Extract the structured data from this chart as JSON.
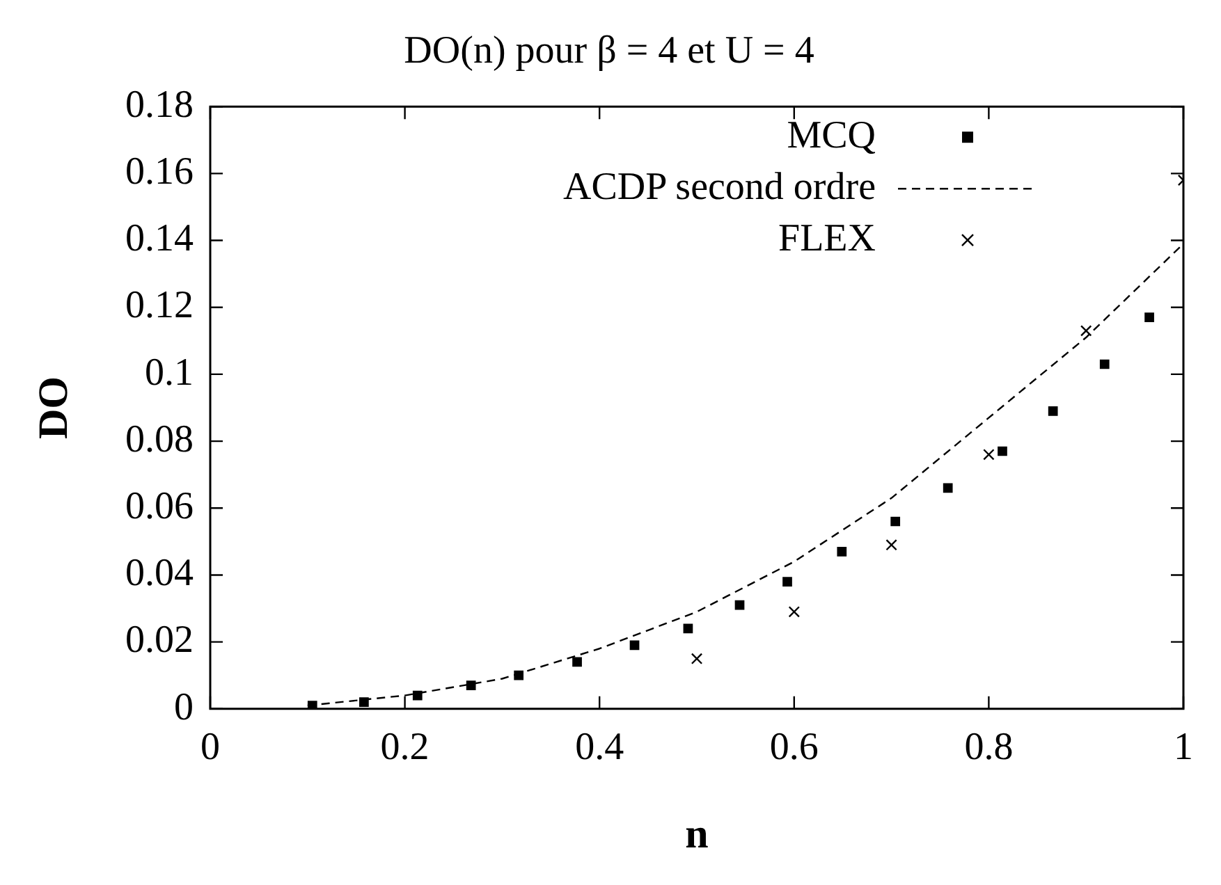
{
  "chart_data": {
    "type": "scatter",
    "title": "DO(n) pour β = 4 et U = 4",
    "xlabel": "n",
    "ylabel": "DO",
    "xlim": [
      0,
      1
    ],
    "xticks": [
      0,
      0.2,
      0.4,
      0.6,
      0.8,
      1
    ],
    "ylim": [
      0,
      0.18
    ],
    "yticks": [
      0,
      0.02,
      0.04,
      0.06,
      0.08,
      0.1,
      0.12,
      0.14,
      0.16,
      0.18
    ],
    "grid": false,
    "legend": "top right",
    "series": [
      {
        "name": "MCQ",
        "type": "scatter",
        "marker": "square",
        "color": "#000000",
        "x": [
          0.105,
          0.158,
          0.213,
          0.268,
          0.317,
          0.377,
          0.436,
          0.491,
          0.544,
          0.593,
          0.649,
          0.704,
          0.758,
          0.814,
          0.866,
          0.919,
          0.965
        ],
        "values": [
          0.001,
          0.002,
          0.004,
          0.007,
          0.01,
          0.014,
          0.019,
          0.024,
          0.031,
          0.038,
          0.047,
          0.056,
          0.066,
          0.077,
          0.089,
          0.103,
          0.117
        ]
      },
      {
        "name": "ACDP second ordre",
        "type": "line",
        "marker": "none",
        "line_style": "dashed",
        "color": "#000000",
        "x": [
          0.1,
          0.2,
          0.3,
          0.4,
          0.5,
          0.6,
          0.7,
          0.8,
          0.9,
          1
        ],
        "values": [
          0.001,
          0.004,
          0.009,
          0.018,
          0.029,
          0.044,
          0.063,
          0.087,
          0.111,
          0.139
        ]
      },
      {
        "name": "FLEX",
        "type": "scatter",
        "marker": "cross",
        "color": "#000000",
        "x": [
          0.5,
          0.6,
          0.7,
          0.8,
          0.9,
          1
        ],
        "values": [
          0.015,
          0.029,
          0.049,
          0.076,
          0.113,
          0.158
        ]
      }
    ]
  }
}
